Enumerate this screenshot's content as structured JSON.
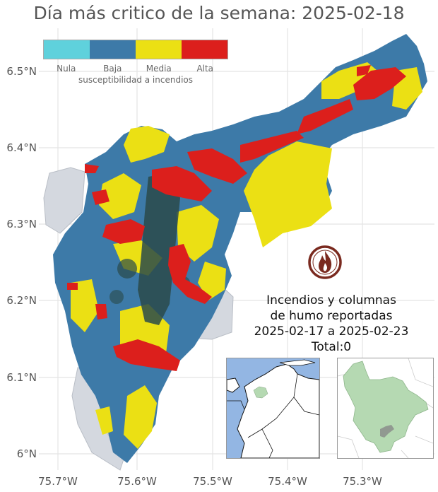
{
  "title": "Día más critico de la semana: 2025-02-18",
  "axes": {
    "y_ticks": [
      "6.5°N",
      "6.4°N",
      "6.3°N",
      "6.2°N",
      "6.1°N",
      "6°N"
    ],
    "x_ticks": [
      "75.7°W",
      "75.6°W",
      "75.5°W",
      "75.4°W",
      "75.3°W"
    ]
  },
  "legend": {
    "caption": "susceptibilidad a incendios",
    "items": [
      {
        "label": "Nula",
        "color": "#5fd1dc"
      },
      {
        "label": "Baja",
        "color": "#3d7aa8"
      },
      {
        "label": "Media",
        "color": "#ebe014"
      },
      {
        "label": "Alta",
        "color": "#dc1f1c"
      }
    ]
  },
  "colors": {
    "outside_area": "#d4d8df",
    "dense_urban": "#2a4a4a",
    "inset_water": "#93b6e3",
    "inset_highlight": "#b5d9b2",
    "fire_icon_ring": "#7a2a1f"
  },
  "icon": "fire-badge-icon",
  "fires": {
    "line1": "Incendios y columnas",
    "line2": "de humo reportadas",
    "range": "2025-02-17 a 2025-02-23",
    "total": "Total:0"
  }
}
